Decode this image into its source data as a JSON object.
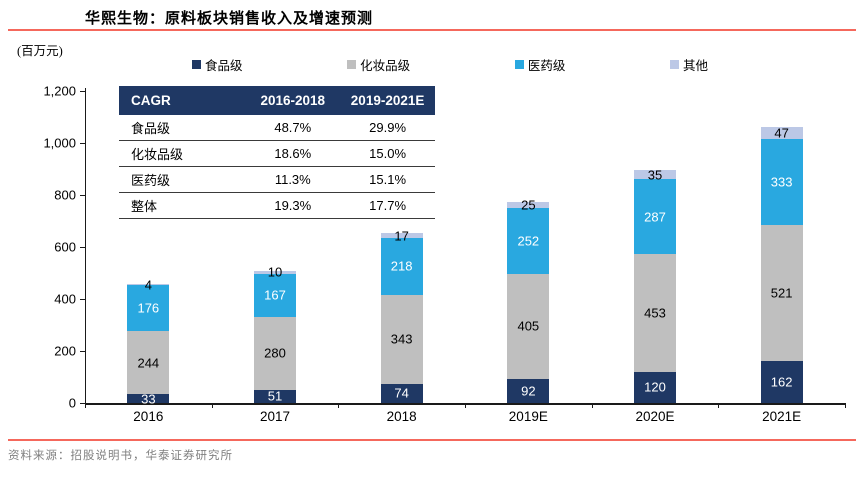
{
  "title": "华熙生物：原料板块销售收入及增速预测",
  "unit_label": "(百万元)",
  "source": "资料来源：招股说明书，华泰证券研究所",
  "colors": {
    "food": "#1F3864",
    "cosmetic": "#BFBFBF",
    "pharma": "#29A8E0",
    "other": "#BCC8E6",
    "rule_red": "#F5685C",
    "table_header_bg": "#1F3864",
    "axis": "#1a1a1a",
    "source_text": "#7F7F7F"
  },
  "cagr_table": {
    "header": [
      "CAGR",
      "2016-2018",
      "2019-2021E"
    ],
    "rows": [
      [
        "食品级",
        "48.7%",
        "29.9%"
      ],
      [
        "化妆品级",
        "18.6%",
        "15.0%"
      ],
      [
        "医药级",
        "11.3%",
        "15.1%"
      ],
      [
        "整体",
        "19.3%",
        "17.7%"
      ]
    ]
  },
  "chart_data": {
    "type": "bar",
    "stacked": true,
    "title": "华熙生物：原料板块销售收入及增速预测",
    "ylabel": "(百万元)",
    "categories": [
      "2016",
      "2017",
      "2018",
      "2019E",
      "2020E",
      "2021E"
    ],
    "series": [
      {
        "name": "食品级",
        "color": "#1F3864",
        "label_color": "#ffffff",
        "values": [
          33,
          51,
          74,
          92,
          120,
          162
        ]
      },
      {
        "name": "化妆品级",
        "color": "#BFBFBF",
        "label_color": "#000000",
        "values": [
          244,
          280,
          343,
          405,
          453,
          521
        ]
      },
      {
        "name": "医药级",
        "color": "#29A8E0",
        "label_color": "#ffffff",
        "values": [
          176,
          167,
          218,
          252,
          287,
          333
        ]
      },
      {
        "name": "其他",
        "color": "#BCC8E6",
        "label_color": "#000000",
        "values": [
          4,
          10,
          17,
          25,
          35,
          47
        ]
      }
    ],
    "totals": [
      457,
      508,
      652,
      774,
      895,
      1063
    ],
    "ylim": [
      0,
      1200
    ],
    "ytick_interval": 200,
    "ytick_labels": [
      "0",
      "200",
      "400",
      "600",
      "800",
      "1,000",
      "1,200"
    ],
    "grid": false,
    "legend_position": "top"
  }
}
